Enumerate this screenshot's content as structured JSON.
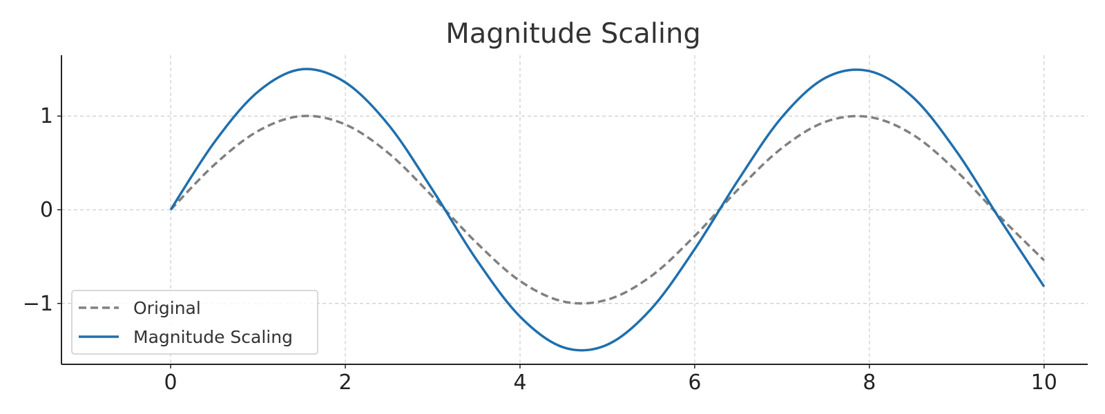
{
  "chart_data": {
    "type": "line",
    "title": "Magnitude Scaling",
    "xlabel": "",
    "ylabel": "",
    "xlim": [
      -1.25,
      10.5
    ],
    "ylim": [
      -1.65,
      1.65
    ],
    "x_ticks": [
      0,
      2,
      4,
      6,
      8,
      10
    ],
    "x_tick_labels": [
      "0",
      "2",
      "4",
      "6",
      "8",
      "10"
    ],
    "y_ticks": [
      -1,
      0,
      1
    ],
    "y_tick_labels": [
      "−1",
      "0",
      "1"
    ],
    "grid": true,
    "legend_position": "lower-left",
    "x": [
      0,
      0.5,
      1,
      1.5,
      2,
      2.5,
      3,
      3.5,
      4,
      4.5,
      5,
      5.5,
      6,
      6.5,
      7,
      7.5,
      8,
      8.5,
      9,
      9.5,
      10
    ],
    "series": [
      {
        "name": "Original",
        "style": "dashed",
        "color": "#808080",
        "values": [
          0,
          0.48,
          0.84,
          1.0,
          0.91,
          0.6,
          0.14,
          -0.35,
          -0.76,
          -0.98,
          -0.96,
          -0.71,
          -0.28,
          0.22,
          0.66,
          0.94,
          0.99,
          0.8,
          0.41,
          -0.08,
          -0.54
        ]
      },
      {
        "name": "Magnitude Scaling",
        "style": "solid",
        "color": "#1f6fad",
        "values": [
          0,
          0.72,
          1.26,
          1.5,
          1.36,
          0.9,
          0.21,
          -0.53,
          -1.14,
          -1.47,
          -1.44,
          -1.06,
          -0.42,
          0.32,
          0.99,
          1.41,
          1.48,
          1.2,
          0.62,
          -0.11,
          -0.82
        ]
      }
    ]
  }
}
